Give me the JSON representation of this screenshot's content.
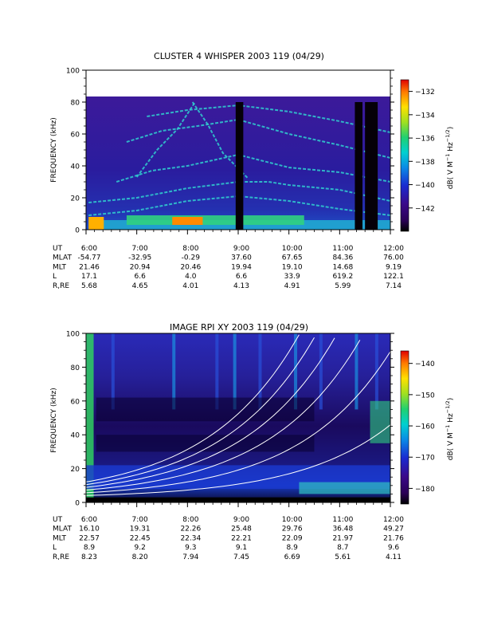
{
  "chart_data": [
    {
      "type": "heatmap",
      "title": "CLUSTER 4 WHISPER 2003 119 (04/29)",
      "ylabel": "FREQUENCY (kHz)",
      "xlabel": "",
      "ylim": [
        0,
        100
      ],
      "y_ticks": [
        "0",
        "20",
        "40",
        "60",
        "80",
        "100"
      ],
      "x_ticks": [
        "6:00",
        "7:00",
        "8:00",
        "9:00",
        "10:00",
        "11:00",
        "12:00"
      ],
      "data_top_khz": 80,
      "colorbar": {
        "label": "dB( V M^-1 Hz^-1/2)",
        "ticks": [
          "-132",
          "-134",
          "-136",
          "-138",
          "-140",
          "-142"
        ],
        "range": [
          -144,
          -131
        ]
      },
      "data_gaps_ut": [
        [
          8.95,
          9.1
        ],
        [
          11.3,
          11.45
        ],
        [
          11.5,
          11.75
        ]
      ],
      "ephemeris": {
        "row_labels": [
          "UT",
          "MLAT",
          "MLT",
          "L",
          "R,RE"
        ],
        "rows": [
          [
            "6:00",
            "7:00",
            "8:00",
            "9:00",
            "10:00",
            "11:00",
            "12:00"
          ],
          [
            "-54.77",
            "-32.95",
            "-0.29",
            "37.60",
            "67.65",
            "84.36",
            "76.00"
          ],
          [
            "21.46",
            "20.94",
            "20.46",
            "19.94",
            "19.10",
            "14.68",
            "9.19"
          ],
          [
            "17.1",
            "6.6",
            "4.0",
            "6.6",
            "33.9",
            "619.2",
            "122.1"
          ],
          [
            "5.68",
            "4.65",
            "4.01",
            "4.13",
            "4.91",
            "5.99",
            "7.14"
          ]
        ]
      }
    },
    {
      "type": "heatmap",
      "title": "IMAGE RPI XY 2003 119 (04/29)",
      "ylabel": "FREQUENCY (kHz)",
      "xlabel": "",
      "ylim": [
        0,
        100
      ],
      "y_ticks": [
        "0",
        "20",
        "40",
        "60",
        "80",
        "100"
      ],
      "x_ticks": [
        "6:00",
        "7:00",
        "8:00",
        "9:00",
        "10:00",
        "11:00",
        "12:00"
      ],
      "colorbar": {
        "label": "dB( V M^-1 Hz^-1/2)",
        "ticks": [
          "-140",
          "-150",
          "-160",
          "-170",
          "-180"
        ],
        "range": [
          -185,
          -136
        ]
      },
      "overlay_curves": "white gyrofrequency harmonic lines",
      "ephemeris": {
        "row_labels": [
          "UT",
          "MLAT",
          "MLT",
          "L",
          "R,RE"
        ],
        "rows": [
          [
            "6:00",
            "7:00",
            "8:00",
            "9:00",
            "10:00",
            "11:00",
            "12:00"
          ],
          [
            "16.10",
            "19.31",
            "22.26",
            "25.48",
            "29.76",
            "36.48",
            "49.27"
          ],
          [
            "22.57",
            "22.45",
            "22.34",
            "22.21",
            "22.09",
            "21.97",
            "21.76"
          ],
          [
            "8.9",
            "9.2",
            "9.3",
            "9.1",
            "8.9",
            "8.7",
            "9.6"
          ],
          [
            "8.23",
            "8.20",
            "7.94",
            "7.45",
            "6.69",
            "5.61",
            "4.11"
          ]
        ]
      }
    }
  ]
}
